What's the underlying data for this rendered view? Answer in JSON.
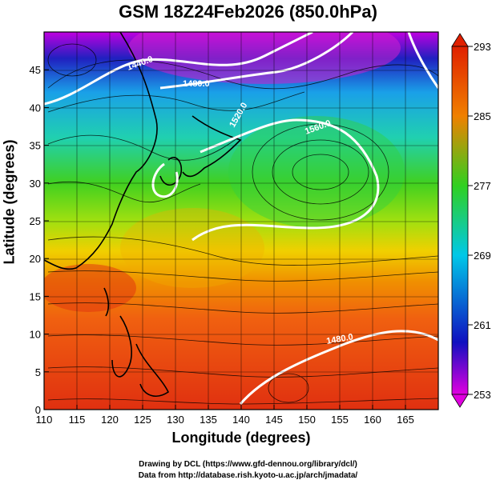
{
  "title": "GSM 18Z24Feb2026 (850.0hPa)",
  "x_axis": {
    "label": "Longitude (degrees)",
    "range": [
      110,
      170
    ],
    "ticks": [
      "110",
      "115",
      "120",
      "125",
      "130",
      "135",
      "140",
      "145",
      "150",
      "155",
      "160",
      "165"
    ]
  },
  "y_axis": {
    "label": "Latitude  (degrees)",
    "range": [
      0,
      50
    ],
    "ticks": [
      "0",
      "5",
      "10",
      "15",
      "20",
      "25",
      "30",
      "35",
      "40",
      "45"
    ]
  },
  "colorbar": {
    "ticks": [
      "253",
      "261",
      "269",
      "277",
      "285",
      "293"
    ],
    "range": [
      253,
      293
    ],
    "colors": [
      "#e000e0",
      "#1010c0",
      "#00c8e8",
      "#30d020",
      "#f0f000",
      "#f08000",
      "#e02000"
    ]
  },
  "contour_labels": [
    "1440.0",
    "1480.0",
    "1520.0",
    "1560.0",
    "1480.0"
  ],
  "credits": {
    "line1": "Drawing by DCL (https://www.gfd-dennou.org/library/dcl/)",
    "line2": "Data from http://database.rish.kyoto-u.ac.jp/arch/jmadata/"
  }
}
